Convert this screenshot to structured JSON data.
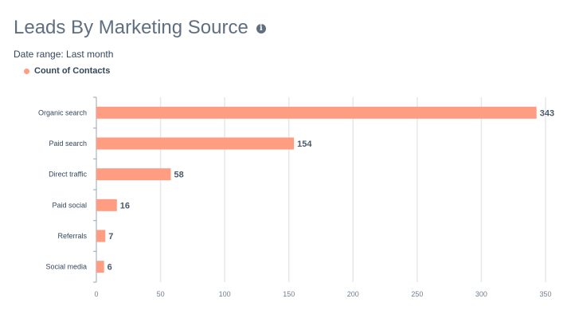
{
  "header": {
    "title": "Leads By Marketing Source",
    "info_icon": "info-icon",
    "date_range": "Date range: Last month"
  },
  "chart_data": {
    "type": "bar",
    "orientation": "horizontal",
    "categories": [
      "Organic search",
      "Paid search",
      "Direct traffic",
      "Paid social",
      "Referrals",
      "Social media"
    ],
    "series": [
      {
        "name": "Count of Contacts",
        "values": [
          343,
          154,
          58,
          16,
          7,
          6
        ],
        "color": "#ff9d82"
      }
    ],
    "title": "Leads By Marketing Source",
    "xlabel": "",
    "ylabel": "",
    "xlim": [
      0,
      350
    ],
    "xticks": [
      0,
      50,
      100,
      150,
      200,
      250,
      300,
      350
    ],
    "grid": true,
    "legend": "top-left",
    "data_labels": true
  }
}
